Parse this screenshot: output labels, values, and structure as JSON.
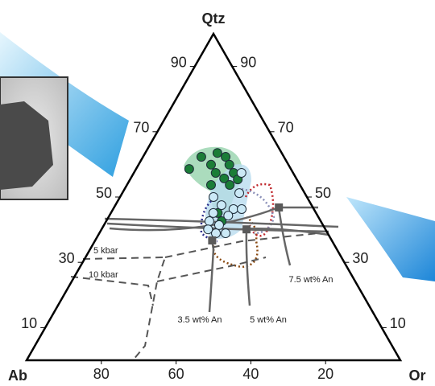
{
  "chart_data": {
    "type": "ternary",
    "vertices": {
      "top": "Qtz",
      "left": "Ab",
      "right": "Or"
    },
    "lim": [
      0,
      100
    ],
    "left_ticks": [
      10,
      30,
      50,
      70,
      90
    ],
    "right_ticks": [
      10,
      30,
      50,
      70,
      90
    ],
    "bottom_ticks": [
      80,
      60,
      40,
      20
    ],
    "annotations": [
      "5 kbar",
      "10 kbar",
      "3.5 wt% An",
      "5 wt% An",
      "7.5 wt% An"
    ],
    "series": [
      {
        "color": "#1b7d37",
        "qtz": [
          58.6,
          62.3,
          59.9,
          63.5,
          62.3,
          59.9,
          57.4,
          55.7,
          57.4,
          53.7,
          55.4,
          45.1,
          42.6,
          53.7
        ],
        "or": [
          14.2,
          15.6,
          19.4,
          19.3,
          22.1,
          24.3,
          26.7,
          25.0,
          21.9,
          27.5,
          28.8,
          28.6,
          30.9,
          22.5
        ]
      },
      {
        "color": "#cbe9f6",
        "qtz": [
          57.4,
          51.2,
          50.0,
          46.3,
          46.3,
          47.5,
          45.1,
          42.6,
          41.4,
          38.9,
          38.9,
          40.1,
          44.3
        ],
        "or": [
          28.8,
          31.3,
          25.0,
          32.2,
          34.4,
          28.4,
          27.4,
          27.6,
          30.8,
          33.8,
          31.2,
          28.5,
          31.8
        ]
      },
      {
        "color": "#5a5a5a",
        "qtz": [
          46.8,
          40.1,
          36.7
        ],
        "or": [
          44.1,
          38.8,
          31.3
        ]
      }
    ]
  }
}
